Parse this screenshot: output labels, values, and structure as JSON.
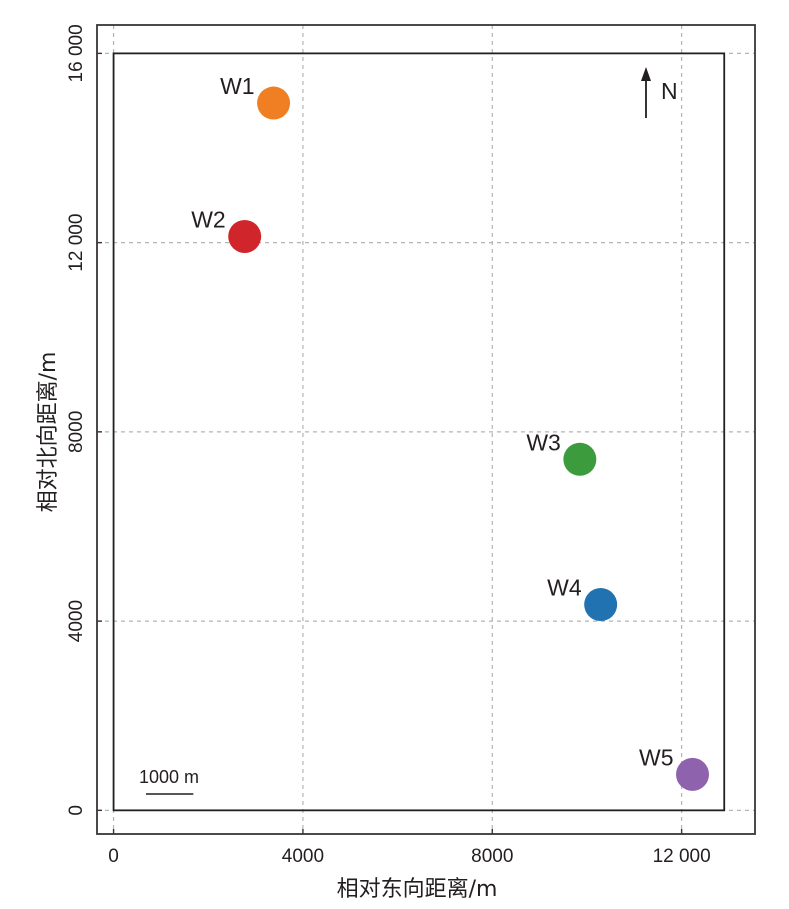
{
  "chart_data": {
    "type": "scatter",
    "title": "",
    "xlabel": "相对东向距离/m",
    "ylabel": "相对北向距离/m",
    "xlim": [
      -350,
      13550
    ],
    "ylim": [
      -500,
      16600
    ],
    "grid": true,
    "x_ticks": [
      0,
      4000,
      8000,
      12000
    ],
    "x_tick_labels": [
      "0",
      "4000",
      "8000",
      "12 000"
    ],
    "y_ticks": [
      0,
      4000,
      8000,
      12000,
      16000
    ],
    "y_tick_labels": [
      "0",
      "4000",
      "8000",
      "12 000",
      "16 000"
    ],
    "boundary_rect": {
      "x0": 0,
      "y0": 0,
      "x1": 12900,
      "y1": 16000
    },
    "points": [
      {
        "name": "W1",
        "x": 3380,
        "y": 14950,
        "color": "#ef7f22"
      },
      {
        "name": "W2",
        "x": 2770,
        "y": 12130,
        "color": "#d0262b"
      },
      {
        "name": "W3",
        "x": 9850,
        "y": 7420,
        "color": "#3b9b3d"
      },
      {
        "name": "W4",
        "x": 10290,
        "y": 4350,
        "color": "#2172b0"
      },
      {
        "name": "W5",
        "x": 12230,
        "y": 760,
        "color": "#8e62ad"
      }
    ],
    "north_arrow": {
      "label": "N",
      "position": "top-right"
    },
    "scale_bar": {
      "label": "1000 m",
      "length": 1000,
      "position": "bottom-left"
    }
  }
}
